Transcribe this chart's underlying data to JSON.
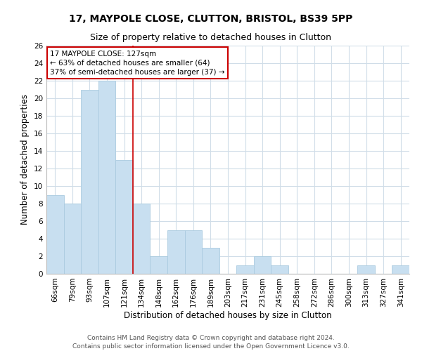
{
  "title": "17, MAYPOLE CLOSE, CLUTTON, BRISTOL, BS39 5PP",
  "subtitle": "Size of property relative to detached houses in Clutton",
  "xlabel": "Distribution of detached houses by size in Clutton",
  "ylabel": "Number of detached properties",
  "bar_labels": [
    "66sqm",
    "79sqm",
    "93sqm",
    "107sqm",
    "121sqm",
    "134sqm",
    "148sqm",
    "162sqm",
    "176sqm",
    "189sqm",
    "203sqm",
    "217sqm",
    "231sqm",
    "245sqm",
    "258sqm",
    "272sqm",
    "286sqm",
    "300sqm",
    "313sqm",
    "327sqm",
    "341sqm"
  ],
  "bar_values": [
    9,
    8,
    21,
    22,
    13,
    8,
    2,
    5,
    5,
    3,
    0,
    1,
    2,
    1,
    0,
    0,
    0,
    0,
    1,
    0,
    1
  ],
  "bar_color": "#c8dff0",
  "bar_edge_color": "#aacbe0",
  "property_line_x": 4.5,
  "annotation_title": "17 MAYPOLE CLOSE: 127sqm",
  "annotation_line1": "← 63% of detached houses are smaller (64)",
  "annotation_line2": "37% of semi-detached houses are larger (37) →",
  "annotation_box_color": "#ffffff",
  "annotation_box_edge_color": "#cc0000",
  "vline_color": "#cc0000",
  "ylim": [
    0,
    26
  ],
  "yticks": [
    0,
    2,
    4,
    6,
    8,
    10,
    12,
    14,
    16,
    18,
    20,
    22,
    24,
    26
  ],
  "grid_color": "#d0dde8",
  "footnote": "Contains HM Land Registry data © Crown copyright and database right 2024.\nContains public sector information licensed under the Open Government Licence v3.0.",
  "title_fontsize": 10,
  "subtitle_fontsize": 9,
  "xlabel_fontsize": 8.5,
  "ylabel_fontsize": 8.5,
  "tick_fontsize": 7.5,
  "annotation_fontsize": 7.5,
  "footnote_fontsize": 6.5
}
